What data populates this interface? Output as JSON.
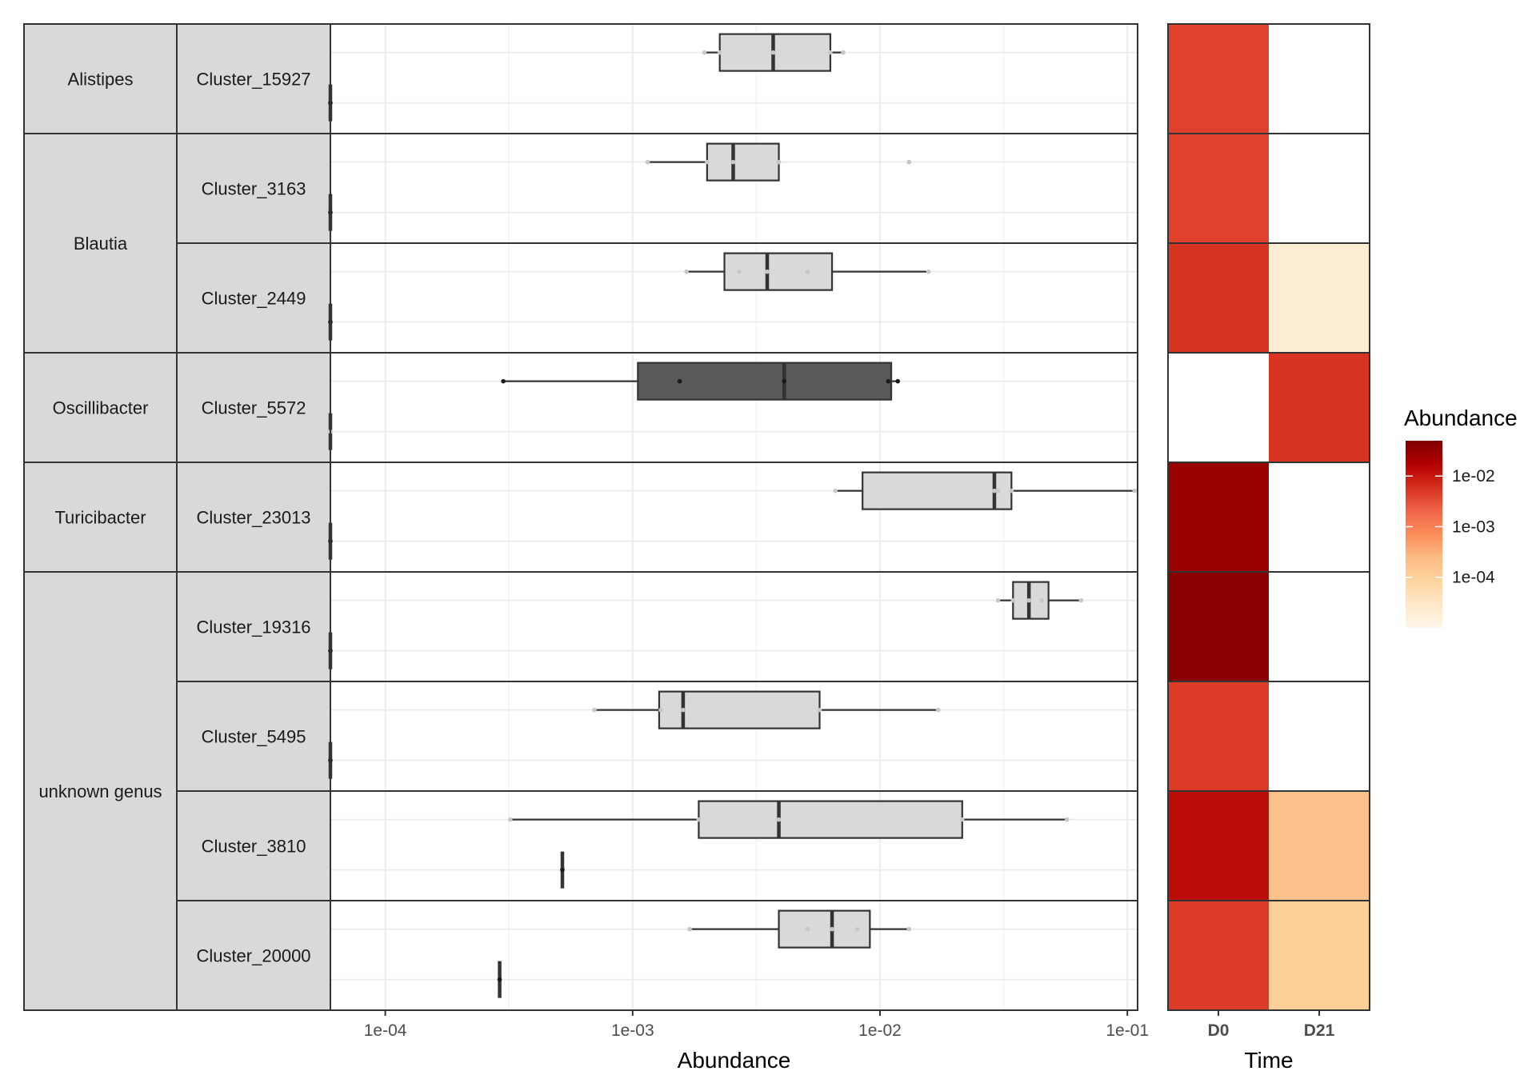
{
  "chart_data": [
    {
      "type": "boxplot",
      "xlabel": "Abundance",
      "x_scale": "log10",
      "xlim": [
        6e-05,
        0.11
      ],
      "x_ticks": [
        "1e-04",
        "1e-03",
        "1e-02",
        "1e-01"
      ],
      "x_tick_values": [
        0.0001,
        0.001,
        0.01,
        0.1
      ],
      "grid": true,
      "genera": [
        {
          "name": "Alistipes",
          "clusters": [
            "Cluster_15927"
          ]
        },
        {
          "name": "Blautia",
          "clusters": [
            "Cluster_3163",
            "Cluster_2449"
          ]
        },
        {
          "name": "Oscillibacter",
          "clusters": [
            "Cluster_5572"
          ]
        },
        {
          "name": "Turicibacter",
          "clusters": [
            "Cluster_23013"
          ]
        },
        {
          "name": "unknown genus",
          "clusters": [
            "Cluster_19316",
            "Cluster_5495",
            "Cluster_3810",
            "Cluster_20000"
          ]
        }
      ],
      "rows": [
        {
          "cluster": "Cluster_15927",
          "boxes": [
            {
              "time": "D21",
              "min": 6e-05,
              "q1": 6e-05,
              "median": 6e-05,
              "q3": 6e-05,
              "max": 6e-05,
              "points": [
                6e-05
              ]
            },
            {
              "time": "D0",
              "min": 0.00195,
              "q1": 0.00225,
              "median": 0.0037,
              "q3": 0.0063,
              "max": 0.0071,
              "points": [
                0.00195,
                0.00225,
                0.0037,
                0.0063,
                0.0071
              ]
            }
          ]
        },
        {
          "cluster": "Cluster_3163",
          "boxes": [
            {
              "time": "D21",
              "min": 6e-05,
              "q1": 6e-05,
              "median": 6e-05,
              "q3": 6e-05,
              "max": 6e-05,
              "points": [
                6e-05
              ]
            },
            {
              "time": "D0",
              "min": 0.00115,
              "q1": 0.002,
              "median": 0.00255,
              "q3": 0.0039,
              "max": 0.0039,
              "outliers": [
                0.0131
              ],
              "points": [
                0.00115,
                0.002,
                0.00255,
                0.0039,
                0.0131
              ]
            }
          ]
        },
        {
          "cluster": "Cluster_2449",
          "boxes": [
            {
              "time": "D21",
              "min": 6e-05,
              "q1": 6e-05,
              "median": 6e-05,
              "q3": 6e-05,
              "max": 6e-05,
              "points": [
                6e-05
              ]
            },
            {
              "time": "D0",
              "min": 0.00165,
              "q1": 0.00235,
              "median": 0.0035,
              "q3": 0.0064,
              "max": 0.0157,
              "points": [
                0.00165,
                0.0027,
                0.0035,
                0.0051,
                0.0157
              ]
            }
          ]
        },
        {
          "cluster": "Cluster_5572",
          "boxes": [
            {
              "time": "D0",
              "min": 6e-05,
              "q1": 6e-05,
              "median": 6e-05,
              "q3": 6e-05,
              "max": 6e-05,
              "points": [
                6e-05
              ]
            },
            {
              "time": "D21",
              "min": 0.0003,
              "q1": 0.00105,
              "median": 0.0041,
              "q3": 0.0111,
              "max": 0.0118,
              "points": [
                0.0003,
                0.00155,
                0.0041,
                0.0108,
                0.0118
              ]
            }
          ]
        },
        {
          "cluster": "Cluster_23013",
          "boxes": [
            {
              "time": "D21",
              "min": 6e-05,
              "q1": 6e-05,
              "median": 6e-05,
              "q3": 6e-05,
              "max": 6e-05,
              "points": [
                6e-05
              ]
            },
            {
              "time": "D0",
              "min": 0.0066,
              "q1": 0.0085,
              "median": 0.029,
              "q3": 0.034,
              "max": 0.107,
              "points": [
                0.0066,
                0.029,
                0.03,
                0.034,
                0.107
              ]
            }
          ]
        },
        {
          "cluster": "Cluster_19316",
          "boxes": [
            {
              "time": "D21",
              "min": 6e-05,
              "q1": 6e-05,
              "median": 6e-05,
              "q3": 6e-05,
              "max": 6e-05,
              "points": [
                6e-05
              ]
            },
            {
              "time": "D0",
              "min": 0.03,
              "q1": 0.0345,
              "median": 0.04,
              "q3": 0.048,
              "max": 0.065,
              "points": [
                0.03,
                0.0345,
                0.04,
                0.045,
                0.065
              ]
            }
          ]
        },
        {
          "cluster": "Cluster_5495",
          "boxes": [
            {
              "time": "D21",
              "min": 6e-05,
              "q1": 6e-05,
              "median": 6e-05,
              "q3": 6e-05,
              "max": 6e-05,
              "points": [
                6e-05
              ]
            },
            {
              "time": "D0",
              "min": 0.0007,
              "q1": 0.00128,
              "median": 0.0016,
              "q3": 0.0057,
              "max": 0.0172,
              "points": [
                0.0007,
                0.0013,
                0.0016,
                0.0057,
                0.0172
              ]
            }
          ]
        },
        {
          "cluster": "Cluster_3810",
          "boxes": [
            {
              "time": "D21",
              "min": 0.00052,
              "q1": 0.00052,
              "median": 0.00052,
              "q3": 0.00052,
              "max": 0.00052,
              "points": [
                0.00052
              ]
            },
            {
              "time": "D0",
              "min": 0.00032,
              "q1": 0.00185,
              "median": 0.0039,
              "q3": 0.0215,
              "max": 0.057,
              "points": [
                0.00032,
                0.00185,
                0.0039,
                0.0215,
                0.057
              ]
            }
          ]
        },
        {
          "cluster": "Cluster_20000",
          "boxes": [
            {
              "time": "D21",
              "min": 0.00029,
              "q1": 0.00029,
              "median": 0.00029,
              "q3": 0.00029,
              "max": 0.00029,
              "points": [
                0.00029
              ]
            },
            {
              "time": "D0",
              "min": 0.0017,
              "q1": 0.0039,
              "median": 0.0064,
              "q3": 0.0091,
              "max": 0.0131,
              "points": [
                0.0017,
                0.0051,
                0.0064,
                0.0081,
                0.0131
              ]
            }
          ]
        }
      ]
    },
    {
      "type": "heatmap",
      "xlabel": "Time",
      "columns": [
        "D0",
        "D21"
      ],
      "rows": [
        "Cluster_15927",
        "Cluster_3163",
        "Cluster_2449",
        "Cluster_5572",
        "Cluster_23013",
        "Cluster_19316",
        "Cluster_5495",
        "Cluster_3810",
        "Cluster_20000"
      ],
      "values": [
        [
          0.0042,
          null
        ],
        [
          0.0042,
          null
        ],
        [
          0.0055,
          2e-05
        ],
        [
          null,
          0.0055
        ],
        [
          0.028,
          null
        ],
        [
          0.04,
          null
        ],
        [
          0.0048,
          null
        ],
        [
          0.013,
          0.00018
        ],
        [
          0.0048,
          0.0001
        ]
      ],
      "color_scale": "log10",
      "color_domain": [
        1e-05,
        0.05
      ],
      "colors": [
        "#fff7ec",
        "#fee8c8",
        "#fdd49e",
        "#fdbb84",
        "#fc8d59",
        "#ef6548",
        "#d7301f",
        "#b30000",
        "#7f0000"
      ],
      "na_color": "#ffffff",
      "legend": {
        "title": "Abundance",
        "placement": "right",
        "ticks": [
          "1e-02",
          "1e-03",
          "1e-04"
        ],
        "tick_values": [
          0.01,
          0.001,
          0.0001
        ]
      }
    }
  ]
}
